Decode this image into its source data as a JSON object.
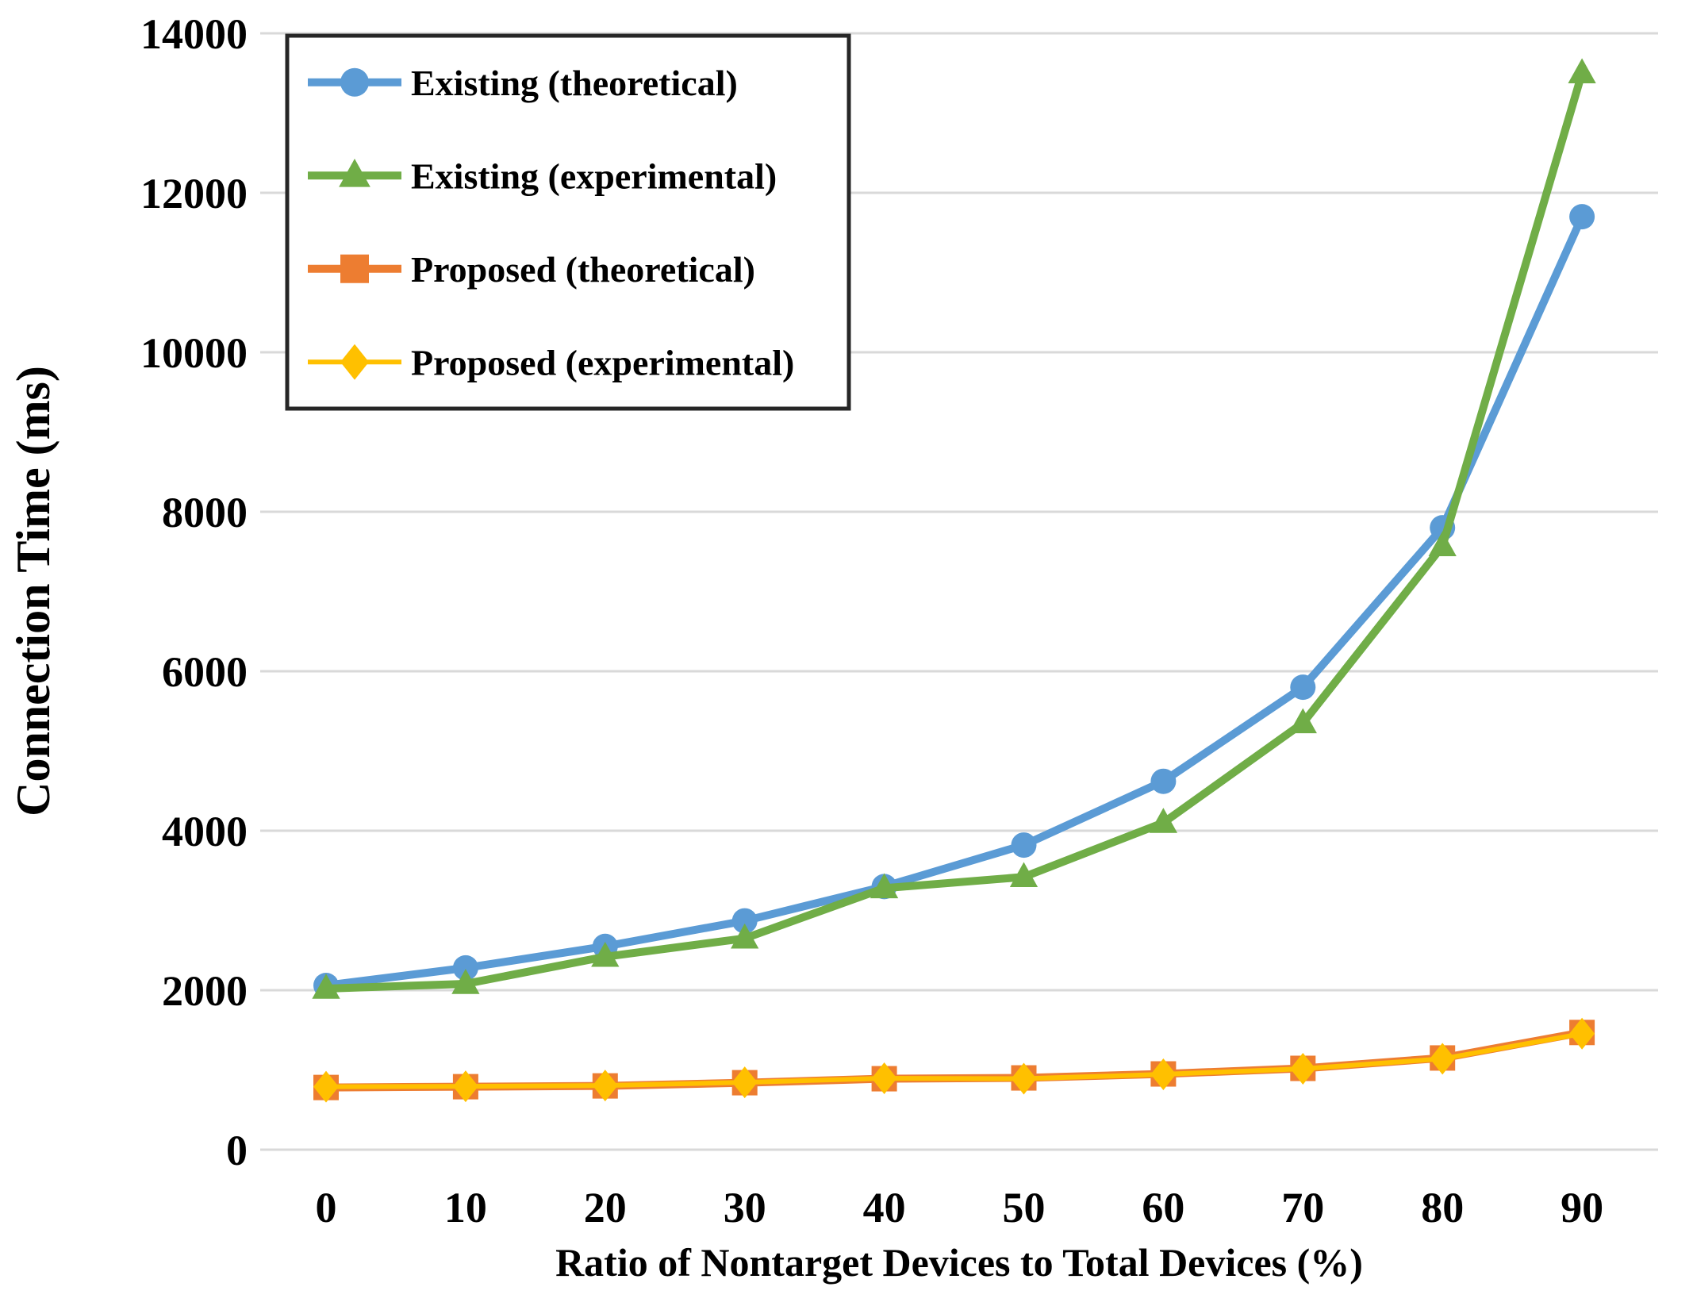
{
  "chart_data": {
    "type": "line",
    "title": "",
    "xlabel": "Ratio of Nontarget Devices to Total Devices (%)",
    "ylabel": "Connection Time (ms)",
    "x": [
      0,
      10,
      20,
      30,
      40,
      50,
      60,
      70,
      80,
      90
    ],
    "x_tick_labels": [
      "0",
      "10",
      "20",
      "30",
      "40",
      "50",
      "60",
      "70",
      "80",
      "90"
    ],
    "yticks": [
      0,
      2000,
      4000,
      6000,
      8000,
      10000,
      12000,
      14000
    ],
    "ytick_labels": [
      "0",
      "2000",
      "4000",
      "6000",
      "8000",
      "10000",
      "12000",
      "14000"
    ],
    "ylim": [
      0,
      14000
    ],
    "xlim": [
      0,
      90
    ],
    "grid": true,
    "legend_position": "top-left",
    "series": [
      {
        "name": "Existing (theoretical)",
        "color": "#5B9BD5",
        "marker": "circle",
        "values": [
          2060,
          2280,
          2550,
          2870,
          3300,
          3820,
          4620,
          5800,
          7800,
          11700
        ]
      },
      {
        "name": "Existing (experimental)",
        "color": "#70AD47",
        "marker": "triangle",
        "values": [
          2020,
          2080,
          2420,
          2650,
          3280,
          3420,
          4100,
          5350,
          7570,
          13500
        ]
      },
      {
        "name": "Proposed (theoretical)",
        "color": "#ED7D31",
        "marker": "square",
        "values": [
          780,
          790,
          800,
          840,
          890,
          900,
          950,
          1020,
          1150,
          1470
        ]
      },
      {
        "name": "Proposed (experimental)",
        "color": "#FFC000",
        "marker": "diamond",
        "values": [
          790,
          795,
          805,
          845,
          895,
          890,
          945,
          1015,
          1140,
          1455
        ]
      }
    ],
    "colors": {
      "grid": "#D9D9D9",
      "text": "#000000",
      "legend_border": "#262626",
      "background": "#FFFFFF"
    }
  }
}
